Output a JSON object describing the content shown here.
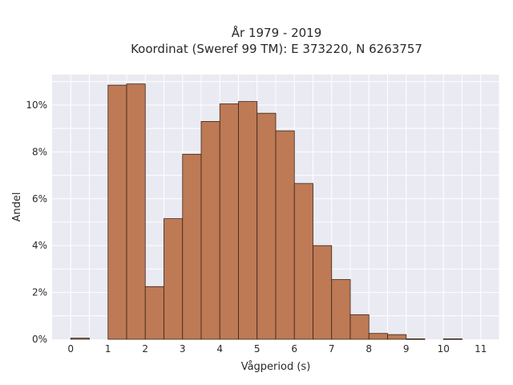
{
  "chart_data": {
    "type": "bar",
    "title_line1": "År 1979 - 2019",
    "title_line2": "Koordinat (Sweref 99 TM): E 373220, N 6263757",
    "xlabel": "Vågperiod (s)",
    "ylabel": "Andel",
    "xlim": [
      -0.5,
      11.5
    ],
    "ylim": [
      0,
      11.3
    ],
    "bin_width": 0.5,
    "x_ticks": [
      0,
      1,
      2,
      3,
      4,
      5,
      6,
      7,
      8,
      9,
      10,
      11
    ],
    "y_ticks": [
      0,
      2,
      4,
      6,
      8,
      10
    ],
    "y_tick_suffix": "%",
    "grid": true,
    "bins": [
      {
        "x": 0.0,
        "value": 0.05
      },
      {
        "x": 1.0,
        "value": 10.85
      },
      {
        "x": 1.5,
        "value": 10.9
      },
      {
        "x": 2.0,
        "value": 2.25
      },
      {
        "x": 2.5,
        "value": 5.15
      },
      {
        "x": 3.0,
        "value": 7.9
      },
      {
        "x": 3.5,
        "value": 9.3
      },
      {
        "x": 4.0,
        "value": 10.05
      },
      {
        "x": 4.5,
        "value": 10.15
      },
      {
        "x": 5.0,
        "value": 9.65
      },
      {
        "x": 5.5,
        "value": 8.9
      },
      {
        "x": 6.0,
        "value": 6.65
      },
      {
        "x": 6.5,
        "value": 4.0
      },
      {
        "x": 7.0,
        "value": 2.55
      },
      {
        "x": 7.5,
        "value": 1.05
      },
      {
        "x": 8.0,
        "value": 0.25
      },
      {
        "x": 8.5,
        "value": 0.2
      },
      {
        "x": 9.0,
        "value": 0.02
      },
      {
        "x": 10.0,
        "value": 0.02
      }
    ],
    "colors": {
      "bar": "#bd7a55",
      "edge": "#3b2418",
      "plot_bg": "#eaeaf2",
      "grid": "#ffffff"
    }
  }
}
